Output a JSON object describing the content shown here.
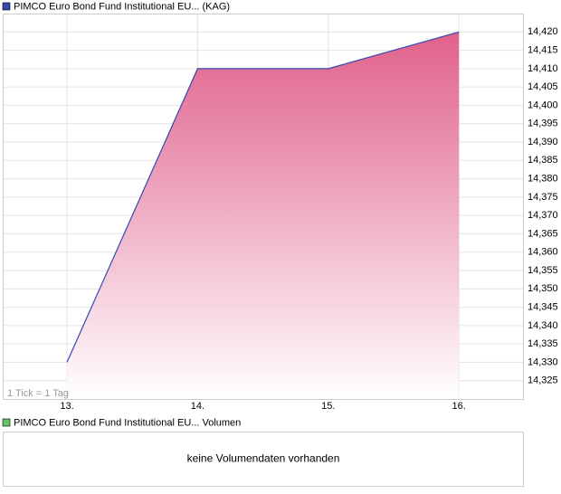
{
  "chart_data": {
    "type": "area",
    "categories": [
      "13.",
      "14.",
      "15.",
      "16."
    ],
    "series": [
      {
        "name": "PIMCO Euro Bond Fund Institutional EU... (KAG)",
        "color": "#3349b0",
        "fill": "#e0608c",
        "values": [
          14.33,
          14.41,
          14.41,
          14.42
        ]
      }
    ],
    "ylim": [
      14.32,
      14.425
    ],
    "yticks": [
      {
        "value": 14.325,
        "label": "14,325"
      },
      {
        "value": 14.33,
        "label": "14,330"
      },
      {
        "value": 14.335,
        "label": "14,335"
      },
      {
        "value": 14.34,
        "label": "14,340"
      },
      {
        "value": 14.345,
        "label": "14,345"
      },
      {
        "value": 14.35,
        "label": "14,350"
      },
      {
        "value": 14.355,
        "label": "14,355"
      },
      {
        "value": 14.36,
        "label": "14,360"
      },
      {
        "value": 14.365,
        "label": "14,365"
      },
      {
        "value": 14.37,
        "label": "14,370"
      },
      {
        "value": 14.375,
        "label": "14,375"
      },
      {
        "value": 14.38,
        "label": "14,380"
      },
      {
        "value": 14.385,
        "label": "14,385"
      },
      {
        "value": 14.39,
        "label": "14,390"
      },
      {
        "value": 14.395,
        "label": "14,395"
      },
      {
        "value": 14.4,
        "label": "14,400"
      },
      {
        "value": 14.405,
        "label": "14,405"
      },
      {
        "value": 14.41,
        "label": "14,410"
      },
      {
        "value": 14.415,
        "label": "14,415"
      },
      {
        "value": 14.42,
        "label": "14,420"
      }
    ],
    "grid": true,
    "annotation": "1 Tick = 1 Tag"
  },
  "volume_chart": {
    "legend": "PIMCO Euro Bond Fund Institutional EU... Volumen",
    "color": "#66c266",
    "message": "keine Volumendaten vorhanden"
  }
}
